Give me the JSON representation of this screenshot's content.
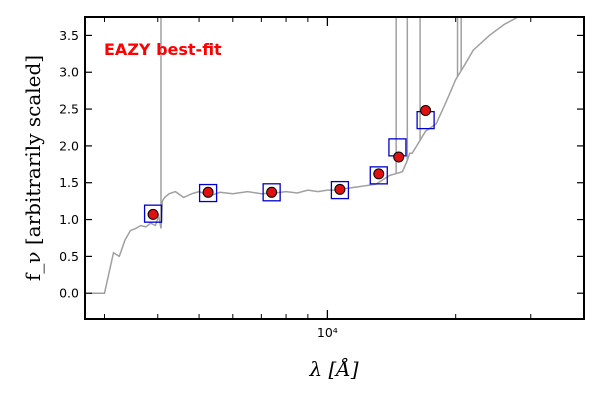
{
  "chart_data": {
    "type": "scatter",
    "title": "",
    "xlabel": "λ [Å]",
    "ylabel": "f_ν [arbitrarily scaled]",
    "xscale": "log",
    "xlim": [
      2700,
      40000
    ],
    "ylim": [
      -0.35,
      3.75
    ],
    "yticks": [
      0.0,
      0.5,
      1.0,
      1.5,
      2.0,
      2.5,
      3.0,
      3.5
    ],
    "ytick_labels": [
      "0.0",
      "0.5",
      "1.0",
      "1.5",
      "2.0",
      "2.5",
      "3.0",
      "3.5"
    ],
    "xtick_major": 10000,
    "xtick_major_label": "10⁴",
    "xtick_minor": [
      3000,
      4000,
      5000,
      6000,
      7000,
      8000,
      9000,
      20000,
      30000
    ],
    "grid": false,
    "annotation": {
      "text": "EAZY best-fit",
      "color": "#ff0000",
      "position": "top-left"
    },
    "colors": {
      "template": "#a0a0a0",
      "model_box": "#0000cc",
      "observed_fill": "#e01010",
      "observed_edge": "#000000"
    },
    "series": [
      {
        "kind": "template-line",
        "x": [
          2780,
          3000,
          3150,
          3250,
          3350,
          3450,
          3550,
          3650,
          3750,
          3850,
          3950,
          4020,
          4070,
          4100,
          4150,
          4250,
          4400,
          4600,
          4800,
          5000,
          5300,
          5600,
          6000,
          6500,
          7000,
          7500,
          8000,
          8500,
          9000,
          9500,
          10000,
          10500,
          11000,
          12000,
          13000,
          14000,
          15000,
          15400,
          15600,
          15800,
          16200,
          17000,
          18000,
          19000,
          20000,
          21000,
          22000,
          24000,
          26000,
          28000,
          30000
        ],
        "y": [
          0.0,
          0.0,
          0.55,
          0.5,
          0.72,
          0.85,
          0.88,
          0.92,
          0.9,
          0.95,
          0.92,
          1.05,
          0.88,
          1.25,
          1.3,
          1.35,
          1.38,
          1.3,
          1.35,
          1.38,
          1.32,
          1.37,
          1.35,
          1.38,
          1.35,
          1.36,
          1.38,
          1.36,
          1.4,
          1.38,
          1.4,
          1.4,
          1.42,
          1.45,
          1.48,
          1.6,
          1.65,
          1.8,
          1.9,
          1.9,
          2.0,
          2.2,
          2.3,
          2.6,
          2.9,
          3.1,
          3.3,
          3.5,
          3.65,
          3.75,
          3.8
        ]
      },
      {
        "kind": "emission-lines",
        "lines": [
          {
            "x": 4070,
            "y": 3.75
          },
          {
            "x": 14500,
            "y": 3.75
          },
          {
            "x": 15400,
            "y": 3.75
          },
          {
            "x": 16500,
            "y": 3.75
          },
          {
            "x": 20200,
            "y": 3.75
          },
          {
            "x": 20600,
            "y": 3.75
          }
        ]
      },
      {
        "kind": "model-photometry",
        "x": [
          3900,
          5250,
          7400,
          10700,
          13200,
          14600,
          17000
        ],
        "y": [
          1.08,
          1.36,
          1.37,
          1.4,
          1.6,
          1.98,
          2.35
        ]
      },
      {
        "kind": "observed-photometry",
        "x": [
          3900,
          5250,
          7400,
          10700,
          13200,
          14700,
          17000
        ],
        "y": [
          1.07,
          1.37,
          1.37,
          1.41,
          1.62,
          1.85,
          2.48
        ]
      }
    ]
  }
}
